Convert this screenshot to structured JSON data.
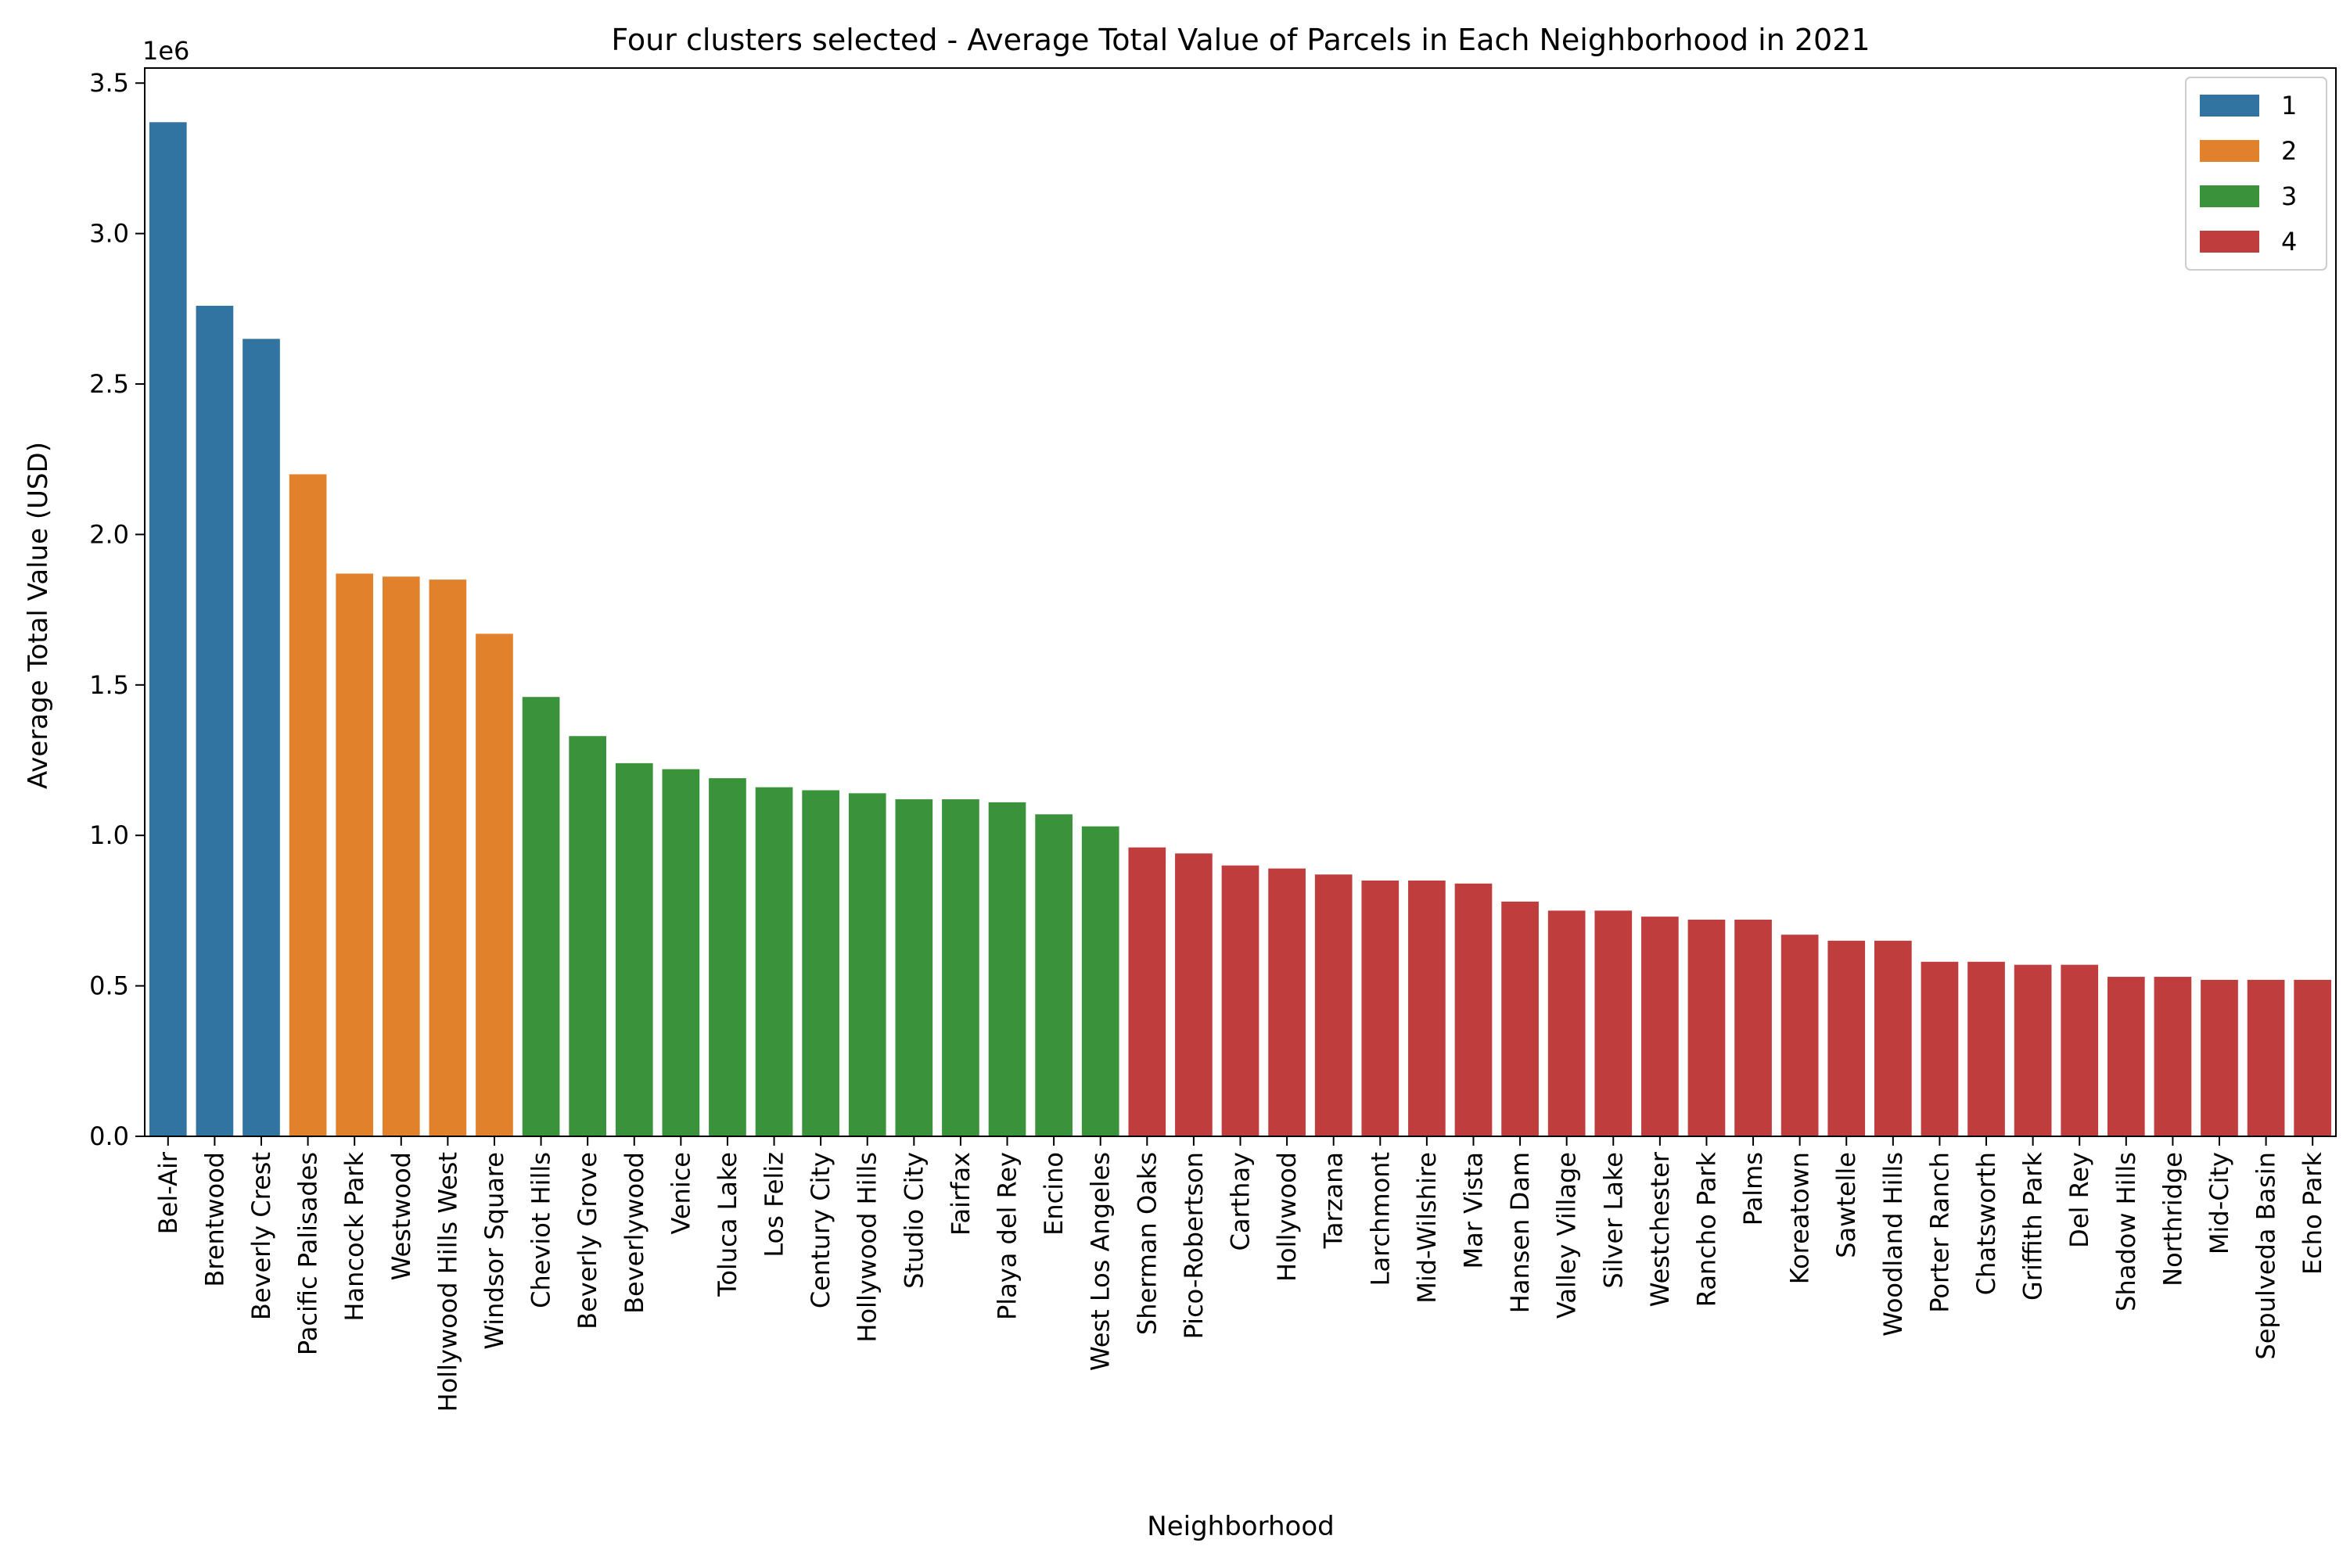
{
  "chart_data": {
    "type": "bar",
    "title": "Four clusters selected - Average Total Value of Parcels in Each Neighborhood in 2021",
    "xlabel": "Neighborhood",
    "ylabel": "Average Total Value (USD)",
    "y_offset_label": "1e6",
    "y_multiplier": 1000000,
    "ylim": [
      0,
      3.55
    ],
    "yticks": [
      0.0,
      0.5,
      1.0,
      1.5,
      2.0,
      2.5,
      3.0,
      3.5
    ],
    "ytick_labels": [
      "0.0",
      "0.5",
      "1.0",
      "1.5",
      "2.0",
      "2.5",
      "3.0",
      "3.5"
    ],
    "grid": false,
    "legend_position": "top-right",
    "colors": {
      "1": "#3274a1",
      "2": "#e1812c",
      "3": "#3a923a",
      "4": "#c03d3e"
    },
    "legend": [
      {
        "label": "1",
        "cluster": "1"
      },
      {
        "label": "2",
        "cluster": "2"
      },
      {
        "label": "3",
        "cluster": "3"
      },
      {
        "label": "4",
        "cluster": "4"
      }
    ],
    "categories": [
      "Bel-Air",
      "Brentwood",
      "Beverly Crest",
      "Pacific Palisades",
      "Hancock Park",
      "Westwood",
      "Hollywood Hills West",
      "Windsor Square",
      "Cheviot Hills",
      "Beverly Grove",
      "Beverlywood",
      "Venice",
      "Toluca Lake",
      "Los Feliz",
      "Century City",
      "Hollywood Hills",
      "Studio City",
      "Fairfax",
      "Playa del Rey",
      "Encino",
      "West Los Angeles",
      "Sherman Oaks",
      "Pico-Robertson",
      "Carthay",
      "Hollywood",
      "Tarzana",
      "Larchmont",
      "Mid-Wilshire",
      "Mar Vista",
      "Hansen Dam",
      "Valley Village",
      "Silver Lake",
      "Westchester",
      "Rancho Park",
      "Palms",
      "Koreatown",
      "Sawtelle",
      "Woodland Hills",
      "Porter Ranch",
      "Chatsworth",
      "Griffith Park",
      "Del Rey",
      "Shadow Hills",
      "Northridge",
      "Mid-City",
      "Sepulveda Basin",
      "Echo Park"
    ],
    "values": [
      3.37,
      2.76,
      2.65,
      2.2,
      1.87,
      1.86,
      1.85,
      1.67,
      1.46,
      1.33,
      1.24,
      1.22,
      1.19,
      1.16,
      1.15,
      1.14,
      1.12,
      1.12,
      1.11,
      1.07,
      1.03,
      0.96,
      0.94,
      0.9,
      0.89,
      0.87,
      0.85,
      0.85,
      0.84,
      0.78,
      0.75,
      0.75,
      0.73,
      0.72,
      0.72,
      0.67,
      0.65,
      0.65,
      0.58,
      0.58,
      0.57,
      0.57,
      0.53,
      0.53,
      0.52,
      0.52,
      0.52
    ],
    "clusters": [
      "1",
      "1",
      "1",
      "2",
      "2",
      "2",
      "2",
      "2",
      "3",
      "3",
      "3",
      "3",
      "3",
      "3",
      "3",
      "3",
      "3",
      "3",
      "3",
      "3",
      "3",
      "4",
      "4",
      "4",
      "4",
      "4",
      "4",
      "4",
      "4",
      "4",
      "4",
      "4",
      "4",
      "4",
      "4",
      "4",
      "4",
      "4",
      "4",
      "4",
      "4",
      "4",
      "4",
      "4",
      "4",
      "4",
      "4"
    ]
  }
}
